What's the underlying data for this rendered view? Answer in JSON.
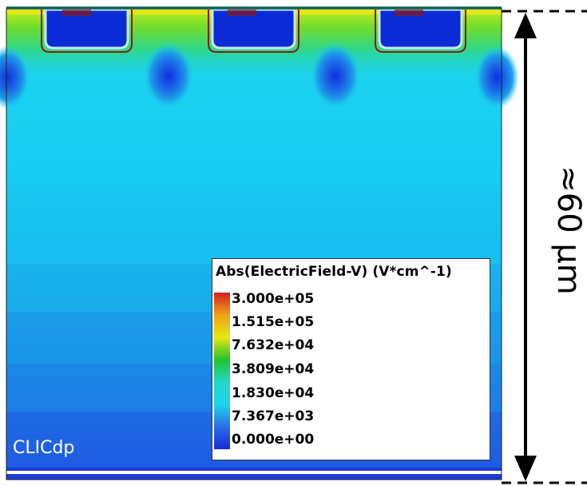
{
  "legend": {
    "title": "Abs(ElectricField-V) (V*cm^-1)",
    "ticks": [
      "3.000e+05",
      "1.515e+05",
      "7.632e+04",
      "3.809e+04",
      "1.830e+04",
      "7.367e+03",
      "0.000e+00"
    ],
    "colors": [
      "#d71d1a",
      "#f0a21a",
      "#e6e814",
      "#22c42a",
      "#22d7c8",
      "#1dd4ea",
      "#2a6ee6",
      "#1a2bd9"
    ]
  },
  "watermark": "CLICdp",
  "dimension": {
    "label": "≈60 µm"
  },
  "colors": {
    "field_high": "#e01c18",
    "field_mid": "#7ad730",
    "field_cyan": "#1ed6f0",
    "field_blue": "#2a82ea",
    "field_deep": "#1a3ad8",
    "implant": "#0a2bd6"
  }
}
